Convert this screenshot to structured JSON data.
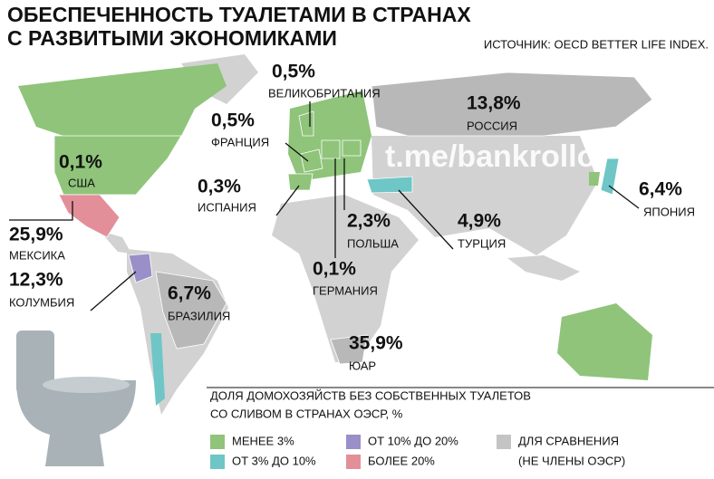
{
  "title_lines": [
    "ОБЕСПЕЧЕННОСТЬ ТУАЛЕТАМИ В СТРАНАХ",
    "С РАЗВИТЫМИ ЭКОНОМИКАМИ"
  ],
  "source": "ИСТОЧНИК: OECD BETTER LIFE INDEX.",
  "watermark": "t.me/bankrollo",
  "countries": [
    {
      "name": "ВЕЛИКОБРИТАНИЯ",
      "value": 0.5,
      "value_label": "0,5%",
      "group": 0
    },
    {
      "name": "ФРАНЦИЯ",
      "value": 0.5,
      "value_label": "0,5%",
      "group": 0
    },
    {
      "name": "США",
      "value": 0.1,
      "value_label": "0,1%",
      "group": 0
    },
    {
      "name": "ИСПАНИЯ",
      "value": 0.3,
      "value_label": "0,3%",
      "group": 0
    },
    {
      "name": "МЕКСИКА",
      "value": 25.9,
      "value_label": "25,9%",
      "group": 3
    },
    {
      "name": "КОЛУМБИЯ",
      "value": 12.3,
      "value_label": "12,3%",
      "group": 2
    },
    {
      "name": "БРАЗИЛИЯ",
      "value": 6.7,
      "value_label": "6,7%",
      "group": 4
    },
    {
      "name": "ГЕРМАНИЯ",
      "value": 0.1,
      "value_label": "0,1%",
      "group": 0
    },
    {
      "name": "ПОЛЬША",
      "value": 2.3,
      "value_label": "2,3%",
      "group": 0
    },
    {
      "name": "ТУРЦИЯ",
      "value": 4.9,
      "value_label": "4,9%",
      "group": 1
    },
    {
      "name": "РОССИЯ",
      "value": 13.8,
      "value_label": "13,8%",
      "group": 4
    },
    {
      "name": "ЯПОНИЯ",
      "value": 6.4,
      "value_label": "6,4%",
      "group": 1
    },
    {
      "name": "ЮАР",
      "value": 35.9,
      "value_label": "35,9%",
      "group": 4
    }
  ],
  "legend": {
    "title_lines": [
      "ДОЛЯ ДОМОХОЗЯЙСТВ БЕЗ СОБСТВЕННЫХ ТУАЛЕТОВ",
      "СО СЛИВОМ В СТРАНАХ ОЭСР, %"
    ],
    "items": [
      {
        "label_lines": [
          "МЕНЕЕ 3%"
        ],
        "color": "#8fc47a"
      },
      {
        "label_lines": [
          "ОТ 3% ДО 10%"
        ],
        "color": "#6ec6c6"
      },
      {
        "label_lines": [
          "ОТ 10% ДО 20%"
        ],
        "color": "#9a8fc8"
      },
      {
        "label_lines": [
          "БОЛЕЕ 20%"
        ],
        "color": "#e38f9a"
      },
      {
        "label_lines": [
          "ДЛЯ СРАВНЕНИЯ",
          "(НЕ ЧЛЕНЫ ОЭСР)"
        ],
        "color": "#c4c4c4"
      }
    ]
  }
}
